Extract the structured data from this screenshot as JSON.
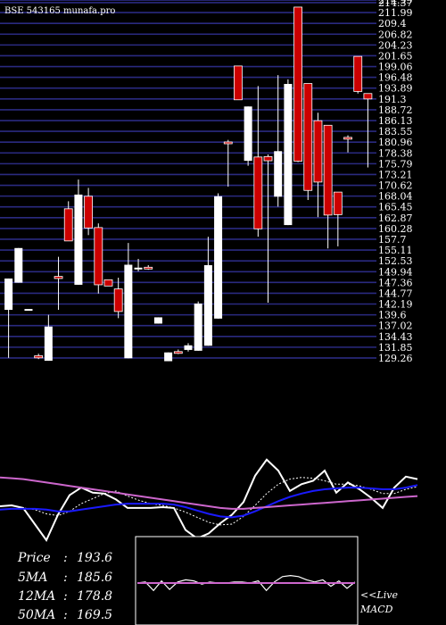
{
  "watermark": "BSE 543165 munafa.pro",
  "chart_data": [
    {
      "type": "candlestick",
      "title": "",
      "ylim": [
        128.4,
        215.0
      ],
      "y_ticks": [
        214.99,
        214.37,
        211.99,
        209.4,
        206.82,
        204.23,
        201.65,
        199.06,
        196.48,
        193.89,
        191.3,
        188.72,
        186.13,
        183.55,
        180.96,
        178.38,
        175.79,
        173.21,
        170.62,
        168.04,
        165.45,
        162.87,
        160.28,
        157.7,
        155.11,
        152.53,
        149.94,
        147.36,
        144.77,
        142.19,
        139.6,
        137.02,
        134.43,
        131.85,
        129.26
      ],
      "y_tick_labels": [
        "214.99",
        "214.37",
        "211.99",
        "209.4",
        "206.82",
        "204.23",
        "201.65",
        "199.06",
        "196.48",
        "193.89",
        "191.3",
        "188.72",
        "186.13",
        "183.55",
        "180.96",
        "178.38",
        "175.79",
        "173.21",
        "170.62",
        "168.04",
        "165.45",
        "162.87",
        "160.28",
        "157.7",
        "155.11",
        "152.53",
        "149.94",
        "147.36",
        "144.77",
        "142.19",
        "139.6",
        "137.02",
        "134.43",
        "131.85",
        "129.26"
      ],
      "grid": true,
      "candles": [
        {
          "o": 140.8,
          "h": 148.3,
          "l": 129.3,
          "c": 148.3,
          "color": "white"
        },
        {
          "o": 147.3,
          "h": 155.6,
          "l": 147.3,
          "c": 155.6,
          "color": "white"
        },
        {
          "o": 141.0,
          "h": 141.0,
          "l": 141.0,
          "c": 141.0,
          "color": "white"
        },
        {
          "o": 129.3,
          "h": 130.3,
          "l": 129.0,
          "c": 129.8,
          "color": "red"
        },
        {
          "o": 128.6,
          "h": 139.6,
          "l": 128.6,
          "c": 136.8,
          "color": "white"
        },
        {
          "o": 148.8,
          "h": 153.5,
          "l": 140.8,
          "c": 148.3,
          "color": "red"
        },
        {
          "o": 165.0,
          "h": 166.8,
          "l": 158.0,
          "c": 157.3,
          "color": "red"
        },
        {
          "o": 146.8,
          "h": 172.0,
          "l": 146.8,
          "c": 168.4,
          "color": "white"
        },
        {
          "o": 168.0,
          "h": 170.0,
          "l": 158.7,
          "c": 160.4,
          "color": "red"
        },
        {
          "o": 160.5,
          "h": 161.5,
          "l": 144.7,
          "c": 146.8,
          "color": "red"
        },
        {
          "o": 148.0,
          "h": 148.0,
          "l": 146.5,
          "c": 146.5,
          "color": "red"
        },
        {
          "o": 145.8,
          "h": 148.5,
          "l": 138.8,
          "c": 140.4,
          "color": "red"
        },
        {
          "o": 129.2,
          "h": 156.8,
          "l": 129.2,
          "c": 151.6,
          "color": "white"
        },
        {
          "o": 150.7,
          "h": 153.0,
          "l": 150.0,
          "c": 150.9,
          "color": "white"
        },
        {
          "o": 151.0,
          "h": 151.5,
          "l": 150.4,
          "c": 150.8,
          "color": "red"
        },
        {
          "o": 139.0,
          "h": 139.0,
          "l": 137.5,
          "c": 137.5,
          "color": "white"
        },
        {
          "o": 128.5,
          "h": 130.6,
          "l": 128.5,
          "c": 130.6,
          "color": "white"
        },
        {
          "o": 130.8,
          "h": 131.3,
          "l": 130.2,
          "c": 130.8,
          "color": "red"
        },
        {
          "o": 131.2,
          "h": 132.8,
          "l": 130.8,
          "c": 132.3,
          "color": "white"
        },
        {
          "o": 131.0,
          "h": 142.8,
          "l": 131.0,
          "c": 142.3,
          "color": "white"
        },
        {
          "o": 132.2,
          "h": 158.3,
          "l": 132.2,
          "c": 151.5,
          "color": "white"
        },
        {
          "o": 138.7,
          "h": 168.7,
          "l": 138.7,
          "c": 168.0,
          "color": "white"
        },
        {
          "o": 181.0,
          "h": 181.5,
          "l": 170.3,
          "c": 181.0,
          "color": "red"
        },
        {
          "o": 199.2,
          "h": 199.2,
          "l": 191.1,
          "c": 191.1,
          "color": "red"
        },
        {
          "o": 176.5,
          "h": 189.5,
          "l": 175.3,
          "c": 189.5,
          "color": "white"
        },
        {
          "o": 177.4,
          "h": 194.4,
          "l": 158.3,
          "c": 160.2,
          "color": "red"
        },
        {
          "o": 177.5,
          "h": 178.0,
          "l": 142.5,
          "c": 176.5,
          "color": "red"
        },
        {
          "o": 167.9,
          "h": 197.0,
          "l": 165.5,
          "c": 178.8,
          "color": "white"
        },
        {
          "o": 161.1,
          "h": 196.0,
          "l": 161.1,
          "c": 194.9,
          "color": "white"
        },
        {
          "o": 213.3,
          "h": 213.3,
          "l": 176.2,
          "c": 176.4,
          "color": "red"
        },
        {
          "o": 195.0,
          "h": 195.0,
          "l": 167.1,
          "c": 169.4,
          "color": "red"
        },
        {
          "o": 186.1,
          "h": 188.0,
          "l": 163.0,
          "c": 171.4,
          "color": "red"
        },
        {
          "o": 185.0,
          "h": 185.0,
          "l": 155.5,
          "c": 163.5,
          "color": "red"
        },
        {
          "o": 169.0,
          "h": 169.0,
          "l": 156.0,
          "c": 163.6,
          "color": "red"
        },
        {
          "o": 182.1,
          "h": 182.6,
          "l": 178.5,
          "c": 182.0,
          "color": "red"
        },
        {
          "o": 201.5,
          "h": 201.5,
          "l": 192.6,
          "c": 193.1,
          "color": "red"
        },
        {
          "o": 192.6,
          "h": 192.6,
          "l": 174.9,
          "c": 191.3,
          "color": "red"
        }
      ]
    },
    {
      "type": "line",
      "title": "",
      "ylim": [
        0,
        1
      ],
      "series": [
        {
          "name": "Price",
          "color": "#ffffff",
          "values": [
            0.4,
            0.41,
            0.38,
            0.19,
            0.0,
            0.3,
            0.53,
            0.62,
            0.56,
            0.55,
            0.48,
            0.38,
            0.38,
            0.38,
            0.39,
            0.38,
            0.12,
            0.02,
            0.08,
            0.2,
            0.3,
            0.45,
            0.76,
            0.95,
            0.82,
            0.58,
            0.66,
            0.7,
            0.82,
            0.56,
            0.68,
            0.6,
            0.5,
            0.38,
            0.62,
            0.75,
            0.72
          ]
        },
        {
          "name": "5MA",
          "color": "#ffffff",
          "dashed": true,
          "values": [
            0.36,
            0.37,
            0.38,
            0.36,
            0.31,
            0.29,
            0.34,
            0.43,
            0.49,
            0.55,
            0.58,
            0.52,
            0.47,
            0.43,
            0.41,
            0.38,
            0.33,
            0.27,
            0.21,
            0.18,
            0.19,
            0.28,
            0.41,
            0.55,
            0.66,
            0.72,
            0.74,
            0.73,
            0.7,
            0.66,
            0.66,
            0.64,
            0.6,
            0.55,
            0.55,
            0.6,
            0.63
          ]
        },
        {
          "name": "12MA",
          "color": "#1a1aff",
          "values": [
            0.36,
            0.37,
            0.37,
            0.37,
            0.36,
            0.34,
            0.34,
            0.36,
            0.38,
            0.4,
            0.42,
            0.43,
            0.43,
            0.43,
            0.43,
            0.42,
            0.39,
            0.35,
            0.31,
            0.28,
            0.27,
            0.29,
            0.34,
            0.4,
            0.46,
            0.51,
            0.55,
            0.58,
            0.6,
            0.61,
            0.62,
            0.62,
            0.61,
            0.6,
            0.6,
            0.62,
            0.65
          ]
        },
        {
          "name": "50MA",
          "color": "#cc66cc",
          "values": [
            0.74,
            0.73,
            0.72,
            0.7,
            0.68,
            0.66,
            0.64,
            0.62,
            0.6,
            0.58,
            0.56,
            0.54,
            0.52,
            0.5,
            0.48,
            0.46,
            0.44,
            0.42,
            0.4,
            0.38,
            0.37,
            0.37,
            0.38,
            0.39,
            0.4,
            0.41,
            0.42,
            0.43,
            0.44,
            0.45,
            0.46,
            0.47,
            0.48,
            0.49,
            0.5,
            0.51,
            0.52
          ]
        }
      ]
    },
    {
      "type": "line",
      "title": "",
      "ylim": [
        -1,
        1
      ],
      "series": [
        {
          "name": "MACD",
          "color": "#ffffff",
          "values": [
            0.0,
            0.05,
            -0.35,
            0.1,
            -0.3,
            0.05,
            0.15,
            0.1,
            -0.05,
            0.05,
            0.0,
            0.0,
            0.05,
            0.05,
            0.0,
            0.1,
            -0.35,
            0.05,
            0.3,
            0.35,
            0.3,
            0.15,
            0.05,
            0.15,
            -0.15,
            0.1,
            -0.25,
            0.05
          ]
        },
        {
          "name": "Signal",
          "color": "#cc66cc",
          "values": [
            0.0,
            0.0,
            0.0,
            0.0,
            0.0,
            0.0,
            0.0,
            0.0,
            0.0,
            0.0,
            0.0,
            0.0,
            0.0,
            0.0,
            0.0,
            0.0,
            0.0,
            0.0,
            0.0,
            0.0,
            0.0,
            0.0,
            0.0,
            0.0,
            0.0,
            0.0,
            0.0,
            0.0
          ]
        }
      ]
    }
  ],
  "stats": {
    "price_label": "Price",
    "price_value": "193.6",
    "ma5_label": "5MA",
    "ma5_value": "185.6",
    "ma12_label": "12MA",
    "ma12_value": "178.8",
    "ma50_label": "50MA",
    "ma50_value": "169.5"
  },
  "macd_caption": {
    "line1": "<<Live",
    "line2": "MACD"
  },
  "colors": {
    "background": "#000000",
    "grid": "#2a2a80",
    "up_candle": "#ffffff",
    "down_candle": "#cc0000"
  }
}
